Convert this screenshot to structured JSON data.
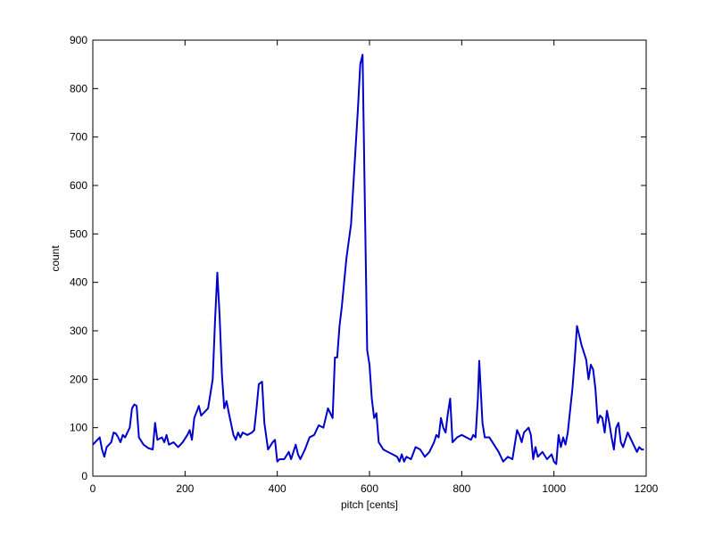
{
  "chart_data": {
    "type": "line",
    "xlabel": "pitch [cents]",
    "ylabel": "count",
    "xlim": [
      0,
      1200
    ],
    "ylim": [
      0,
      900
    ],
    "xticks": [
      0,
      200,
      400,
      600,
      800,
      1000,
      1200
    ],
    "yticks": [
      0,
      100,
      200,
      300,
      400,
      500,
      600,
      700,
      800,
      900
    ],
    "grid": false,
    "series": [
      {
        "color": "#0000cc",
        "x": [
          0,
          10,
          15,
          20,
          25,
          30,
          40,
          45,
          50,
          55,
          60,
          65,
          70,
          75,
          80,
          85,
          90,
          95,
          100,
          110,
          120,
          130,
          135,
          140,
          150,
          155,
          160,
          165,
          175,
          185,
          195,
          205,
          210,
          215,
          220,
          230,
          235,
          240,
          250,
          260,
          265,
          270,
          275,
          280,
          285,
          290,
          295,
          305,
          310,
          315,
          320,
          325,
          335,
          345,
          350,
          355,
          360,
          367,
          372,
          380,
          390,
          395,
          400,
          405,
          415,
          425,
          430,
          440,
          445,
          450,
          460,
          470,
          480,
          490,
          500,
          505,
          510,
          520,
          525,
          530,
          535,
          540,
          550,
          560,
          565,
          570,
          575,
          580,
          585,
          590,
          595,
          600,
          605,
          610,
          615,
          620,
          630,
          640,
          650,
          660,
          665,
          670,
          675,
          680,
          690,
          700,
          710,
          720,
          730,
          740,
          745,
          750,
          755,
          760,
          765,
          770,
          775,
          780,
          790,
          800,
          810,
          820,
          825,
          830,
          835,
          838,
          845,
          850,
          860,
          870,
          880,
          890,
          900,
          910,
          920,
          925,
          930,
          935,
          945,
          950,
          955,
          960,
          965,
          975,
          985,
          995,
          1000,
          1005,
          1010,
          1015,
          1020,
          1025,
          1030,
          1040,
          1045,
          1050,
          1055,
          1060,
          1070,
          1075,
          1080,
          1085,
          1090,
          1095,
          1100,
          1105,
          1110,
          1115,
          1120,
          1125,
          1130,
          1135,
          1140,
          1145,
          1150,
          1160,
          1165,
          1170,
          1180,
          1185,
          1190,
          1195
        ],
        "values": [
          65,
          75,
          80,
          55,
          40,
          60,
          70,
          90,
          88,
          80,
          70,
          85,
          80,
          90,
          100,
          140,
          148,
          145,
          80,
          65,
          58,
          55,
          110,
          75,
          80,
          70,
          85,
          65,
          70,
          60,
          70,
          85,
          95,
          75,
          120,
          145,
          125,
          130,
          140,
          200,
          320,
          420,
          330,
          210,
          140,
          155,
          130,
          85,
          75,
          90,
          80,
          90,
          85,
          90,
          95,
          140,
          190,
          195,
          110,
          55,
          70,
          75,
          30,
          35,
          35,
          50,
          35,
          65,
          45,
          35,
          55,
          80,
          85,
          105,
          100,
          120,
          140,
          120,
          245,
          245,
          310,
          350,
          450,
          520,
          600,
          680,
          760,
          850,
          870,
          560,
          260,
          230,
          160,
          120,
          130,
          70,
          55,
          50,
          45,
          40,
          30,
          45,
          30,
          40,
          35,
          60,
          55,
          40,
          50,
          70,
          85,
          80,
          120,
          100,
          90,
          130,
          160,
          70,
          80,
          85,
          80,
          75,
          85,
          80,
          160,
          238,
          110,
          80,
          80,
          65,
          50,
          30,
          40,
          35,
          95,
          85,
          70,
          90,
          100,
          85,
          35,
          60,
          40,
          50,
          35,
          45,
          30,
          25,
          85,
          60,
          80,
          65,
          90,
          180,
          240,
          310,
          290,
          270,
          240,
          200,
          230,
          220,
          180,
          110,
          125,
          120,
          90,
          135,
          110,
          80,
          55,
          100,
          110,
          70,
          60,
          90,
          80,
          70,
          50,
          60,
          55,
          55
        ]
      }
    ]
  }
}
